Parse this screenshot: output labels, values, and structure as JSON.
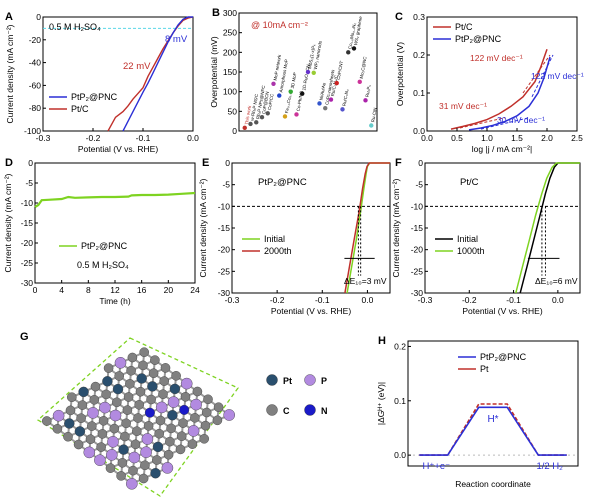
{
  "colors": {
    "red": "#c0302b",
    "blue": "#2b2fd6",
    "green": "#7ed321",
    "black": "#000000",
    "cyan": "#5ad8e8",
    "gray": "#808080",
    "purple": "#b28ae0",
    "navy": "#1a1ac8",
    "teal": "#2a4f6e"
  },
  "chart_data": [
    {
      "id": "A",
      "type": "line",
      "panel_label": "A",
      "xlabel": "Potential (V vs. RHE)",
      "ylabel": "Current density (mA cm⁻²)",
      "xlim": [
        -0.3,
        0.0
      ],
      "ylim": [
        -100,
        0
      ],
      "xticks": [
        "-0.3",
        "-0.2",
        "-0.1",
        "0.0"
      ],
      "yticks": [
        "-100",
        "-80",
        "-60",
        "-40",
        "-20",
        "0"
      ],
      "annotations": [
        {
          "text": "0.5 M H₂SO₄"
        },
        {
          "text": "22 mV"
        },
        {
          "text": "8 mV"
        }
      ],
      "legend": [
        "PtP₂@PNC",
        "Pt/C"
      ],
      "series": [
        {
          "name": "PtP₂@PNC",
          "x": [
            -0.14,
            -0.12,
            -0.1,
            -0.09,
            -0.08,
            -0.07,
            -0.06,
            -0.05,
            -0.04,
            -0.03,
            -0.02,
            -0.01,
            0.0
          ],
          "y": [
            -100,
            -83,
            -66,
            -58,
            -49,
            -40,
            -31,
            -22,
            -14,
            -7,
            -2,
            0,
            0
          ]
        },
        {
          "name": "Pt/C",
          "x": [
            -0.17,
            -0.155,
            -0.14,
            -0.13,
            -0.12,
            -0.11,
            -0.1,
            -0.09,
            -0.08,
            -0.07,
            -0.06,
            -0.05,
            -0.04,
            -0.03,
            -0.02,
            -0.01,
            0.0
          ],
          "y": [
            -100,
            -88,
            -83,
            -78,
            -72,
            -67,
            -62,
            -52,
            -44,
            -36,
            -28,
            -21,
            -14,
            -8,
            -3,
            -1,
            0
          ]
        }
      ]
    },
    {
      "id": "B",
      "type": "scatter",
      "panel_label": "B",
      "xlabel": "",
      "ylabel": "Overpotential (mV)",
      "ylim": [
        0,
        300
      ],
      "yticks": [
        "0",
        "50",
        "100",
        "150",
        "200",
        "250",
        "300"
      ],
      "annotations": [
        {
          "text": "@ 10mA cm⁻²"
        }
      ],
      "points": [
        {
          "label": "This work",
          "y": 8,
          "color": "#c0302b"
        },
        {
          "label": "w-Rh₂P NS/C",
          "y": 18,
          "color": "#555555"
        },
        {
          "label": "Rh₂P NPs@NPC",
          "y": 22,
          "color": "#555555"
        },
        {
          "label": "CoP@BCN",
          "y": 35,
          "color": "#555555"
        },
        {
          "label": "CoP/CC",
          "y": 45,
          "color": "#555555"
        },
        {
          "label": "MoP network",
          "y": 120,
          "color": "#aa33aa"
        },
        {
          "label": "Amorphous MoP",
          "y": 90,
          "color": "#2244cc"
        },
        {
          "label": "Fe₀.₅Co₀.₅P",
          "y": 37,
          "color": "#d4a017"
        },
        {
          "label": "3D MoP",
          "y": 100,
          "color": "#33aa33"
        },
        {
          "label": "Co-Ph/NG",
          "y": 42,
          "color": "#cc3399"
        },
        {
          "label": "1D-RuO₂-CNₓ",
          "y": 95,
          "color": "#111111"
        },
        {
          "label": "MoS₂(1-x)Pₓ",
          "y": 150,
          "color": "#6633cc"
        },
        {
          "label": "WP₂ nanorods",
          "y": 148,
          "color": "#99cc33"
        },
        {
          "label": "Ni/Au/Au",
          "y": 70,
          "color": "#3355cc"
        },
        {
          "label": "CoPc-nanosheets",
          "y": 58,
          "color": "#777777"
        },
        {
          "label": "Ru/C₃N₄/C",
          "y": 80,
          "color": "#aa22aa"
        },
        {
          "label": "CoP/CNT",
          "y": 122,
          "color": "#cc2222"
        },
        {
          "label": "Ru/C₃N₄",
          "y": 55,
          "color": "#5555cc"
        },
        {
          "label": "Co₁.₆Mo₀.₄N₂",
          "y": 200,
          "color": "#333333"
        },
        {
          "label": "WS₂ graphene",
          "y": 210,
          "color": "#111111"
        },
        {
          "label": "Mo₂C@NC",
          "y": 125,
          "color": "#cc3399"
        },
        {
          "label": "Ru₂P₅",
          "y": 78,
          "color": "#aa22aa"
        },
        {
          "label": "Ru-ClN",
          "y": 14,
          "color": "#66cccc"
        }
      ]
    },
    {
      "id": "C",
      "type": "line",
      "panel_label": "C",
      "xlabel": "log |j / mA cm⁻²|",
      "ylabel": "Overpotential (V)",
      "xlim": [
        0.0,
        2.5
      ],
      "ylim": [
        0.0,
        0.3
      ],
      "xticks": [
        "0.0",
        "0.5",
        "1.0",
        "1.5",
        "2.0",
        "2.5"
      ],
      "yticks": [
        "0.0",
        "0.1",
        "0.2",
        "0.3"
      ],
      "legend": [
        "Pt/C",
        "PtP₂@PNC"
      ],
      "annotations": [
        {
          "text": "122 mV dec⁻¹"
        },
        {
          "text": "122 mV dec⁻¹"
        },
        {
          "text": "31 mV dec⁻¹"
        },
        {
          "text": "30 mV dec⁻¹"
        }
      ],
      "series": [
        {
          "name": "Pt/C",
          "x": [
            0.4,
            0.6,
            0.8,
            1.0,
            1.2,
            1.4,
            1.6,
            1.8,
            1.9,
            2.0
          ],
          "y": [
            0.005,
            0.012,
            0.02,
            0.03,
            0.045,
            0.065,
            0.09,
            0.13,
            0.17,
            0.215
          ]
        },
        {
          "name": "PtP₂@PNC",
          "x": [
            0.7,
            0.9,
            1.1,
            1.3,
            1.5,
            1.7,
            1.85,
            1.95,
            2.05
          ],
          "y": [
            0.003,
            0.008,
            0.015,
            0.025,
            0.04,
            0.065,
            0.1,
            0.14,
            0.195
          ]
        }
      ]
    },
    {
      "id": "D",
      "type": "line",
      "panel_label": "D",
      "xlabel": "Time (h)",
      "ylabel": "Current density (mA cm⁻²)",
      "xlim": [
        0,
        24
      ],
      "ylim": [
        -30,
        0
      ],
      "xticks": [
        "0",
        "4",
        "8",
        "12",
        "16",
        "20",
        "24"
      ],
      "yticks": [
        "-30",
        "-25",
        "-20",
        "-15",
        "-10",
        "-5",
        "0"
      ],
      "legend": [
        "PtP₂@PNC"
      ],
      "annotations": [
        {
          "text": "0.5 M H₂SO₄"
        }
      ],
      "series": [
        {
          "name": "PtP₂@PNC",
          "x": [
            0,
            0.5,
            1,
            2,
            4,
            5,
            6,
            8,
            10,
            12,
            14,
            14.5,
            16,
            18,
            20,
            22,
            24
          ],
          "y": [
            -11,
            -10.5,
            -9.3,
            -9.2,
            -9,
            -8.5,
            -8.7,
            -8.6,
            -8.5,
            -8.5,
            -8.4,
            -8.1,
            -8.0,
            -8.0,
            -7.9,
            -7.7,
            -7.5
          ]
        }
      ]
    },
    {
      "id": "E",
      "type": "line",
      "panel_label": "E",
      "xlabel": "Potential (V vs. RHE)",
      "ylabel": "Current density (mA cm⁻²)",
      "xlim": [
        -0.3,
        0.05
      ],
      "ylim": [
        -30,
        0
      ],
      "xticks": [
        "-0.3",
        "-0.2",
        "-0.1",
        "0.0"
      ],
      "yticks": [
        "-30",
        "-25",
        "-20",
        "-15",
        "-10",
        "-5",
        "0"
      ],
      "legend": [
        "Initial",
        "2000th"
      ],
      "annotations": [
        {
          "text": "PtP₂@PNC"
        },
        {
          "text": "ΔE₁₀=3 mV"
        }
      ],
      "series": [
        {
          "name": "Initial",
          "x": [
            -0.045,
            -0.035,
            -0.025,
            -0.015,
            -0.008,
            -0.003,
            0.0,
            0.005,
            0.05
          ],
          "y": [
            -30,
            -24,
            -18,
            -11,
            -6,
            -2.5,
            -0.8,
            0,
            0
          ]
        },
        {
          "name": "2000th",
          "x": [
            -0.05,
            -0.04,
            -0.03,
            -0.018,
            -0.011,
            -0.005,
            -0.001,
            0.004,
            0.05
          ],
          "y": [
            -30,
            -24,
            -18,
            -11,
            -6,
            -2.5,
            -0.8,
            0,
            0
          ]
        }
      ]
    },
    {
      "id": "F",
      "type": "line",
      "panel_label": "F",
      "xlabel": "Potential (V vs. RHE)",
      "ylabel": "Current density (mA cm⁻²)",
      "xlim": [
        -0.3,
        0.05
      ],
      "ylim": [
        -30,
        0
      ],
      "xticks": [
        "-0.3",
        "-0.2",
        "-0.1",
        "0.0"
      ],
      "yticks": [
        "-30",
        "-25",
        "-20",
        "-15",
        "-10",
        "-5",
        "0"
      ],
      "legend": [
        "Initial",
        "1000th"
      ],
      "annotations": [
        {
          "text": "Pt/C"
        },
        {
          "text": "ΔE₁₀=6 mV"
        }
      ],
      "series": [
        {
          "name": "Initial",
          "x": [
            -0.085,
            -0.07,
            -0.055,
            -0.04,
            -0.028,
            -0.018,
            -0.008,
            0.0,
            0.05
          ],
          "y": [
            -30,
            -24,
            -18,
            -12,
            -7,
            -3.5,
            -1,
            0,
            0
          ]
        },
        {
          "name": "1000th",
          "x": [
            -0.095,
            -0.08,
            -0.065,
            -0.05,
            -0.036,
            -0.025,
            -0.013,
            -0.003,
            0.05
          ],
          "y": [
            -30,
            -24,
            -18,
            -12,
            -7,
            -3.5,
            -1,
            0,
            0
          ]
        }
      ]
    },
    {
      "id": "H",
      "type": "line",
      "panel_label": "H",
      "xlabel": "Reaction coordinate",
      "ylabel": "|ΔGᴴ⁺ (eV)|",
      "ylim": [
        -0.02,
        0.21
      ],
      "yticks": [
        "0.0",
        "0.1",
        "0.2"
      ],
      "legend": [
        "PtP₂@PNC",
        "Pt"
      ],
      "state_labels": [
        "H⁺+e⁻",
        "H*",
        "1/2 H₂"
      ],
      "series": [
        {
          "name": "PtP₂@PNC",
          "x": [
            0,
            1,
            2
          ],
          "y": [
            0,
            0.088,
            0
          ]
        },
        {
          "name": "Pt",
          "x": [
            0,
            1,
            2
          ],
          "y": [
            0,
            0.094,
            0
          ]
        }
      ]
    }
  ],
  "panel_g": {
    "panel_label": "G",
    "legend": [
      {
        "label": "Pt",
        "color": "#2a4f6e"
      },
      {
        "label": "P",
        "color": "#b28ae0"
      },
      {
        "label": "C",
        "color": "#808080"
      },
      {
        "label": "N",
        "color": "#1a1ac8"
      }
    ]
  }
}
